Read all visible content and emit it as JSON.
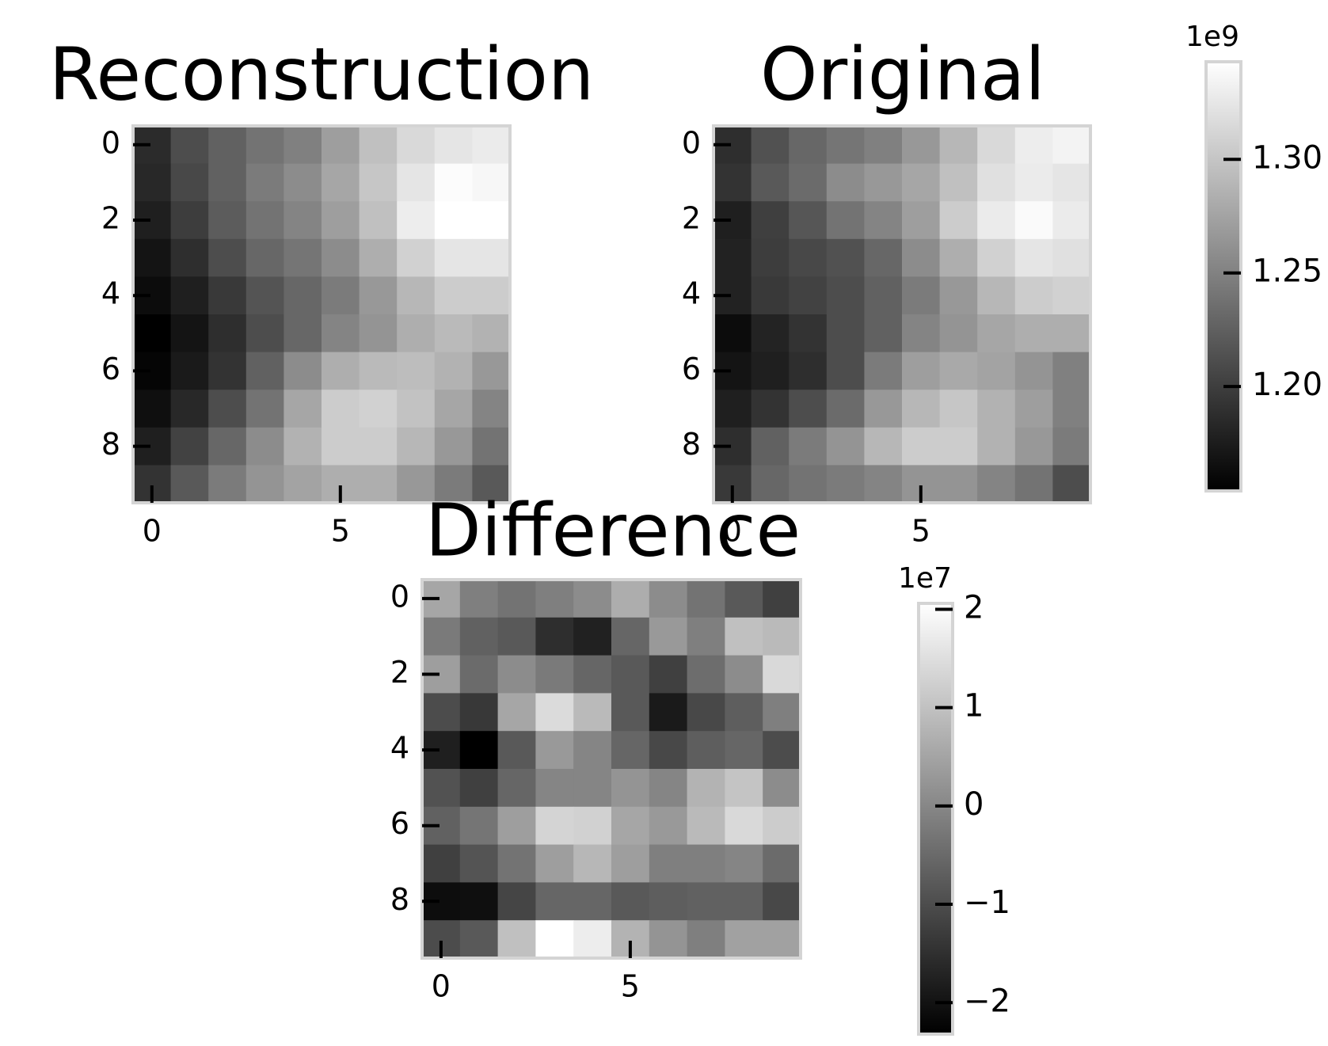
{
  "chart_data": [
    {
      "type": "heatmap",
      "title": "Reconstruction",
      "values": [
        [
          1.186,
          1.211,
          1.226,
          1.239,
          1.249,
          1.271,
          1.296,
          1.315,
          1.324,
          1.328
        ],
        [
          1.184,
          1.207,
          1.226,
          1.245,
          1.258,
          1.277,
          1.301,
          1.324,
          1.341,
          1.337
        ],
        [
          1.177,
          1.199,
          1.222,
          1.239,
          1.252,
          1.271,
          1.296,
          1.33,
          1.343,
          1.343
        ],
        [
          1.169,
          1.188,
          1.211,
          1.23,
          1.241,
          1.258,
          1.283,
          1.309,
          1.324,
          1.324
        ],
        [
          1.163,
          1.177,
          1.196,
          1.216,
          1.23,
          1.245,
          1.267,
          1.29,
          1.305,
          1.305
        ],
        [
          1.154,
          1.169,
          1.188,
          1.211,
          1.23,
          1.252,
          1.264,
          1.283,
          1.292,
          1.286
        ],
        [
          1.158,
          1.173,
          1.192,
          1.226,
          1.258,
          1.283,
          1.292,
          1.294,
          1.286,
          1.267
        ],
        [
          1.165,
          1.184,
          1.211,
          1.239,
          1.277,
          1.305,
          1.309,
          1.298,
          1.277,
          1.252
        ],
        [
          1.177,
          1.203,
          1.23,
          1.258,
          1.286,
          1.305,
          1.305,
          1.29,
          1.267,
          1.239
        ],
        [
          1.192,
          1.22,
          1.245,
          1.264,
          1.275,
          1.283,
          1.283,
          1.267,
          1.245,
          1.22
        ]
      ],
      "xticks": [
        0,
        5
      ],
      "yticks": [
        0,
        2,
        4,
        6,
        8
      ],
      "cmap": "gray"
    },
    {
      "type": "heatmap",
      "title": "Original",
      "values": [
        [
          1.188,
          1.214,
          1.23,
          1.241,
          1.249,
          1.267,
          1.29,
          1.315,
          1.33,
          1.334
        ],
        [
          1.192,
          1.22,
          1.233,
          1.258,
          1.267,
          1.277,
          1.296,
          1.32,
          1.328,
          1.324
        ],
        [
          1.177,
          1.201,
          1.218,
          1.239,
          1.252,
          1.271,
          1.305,
          1.328,
          1.339,
          1.328
        ],
        [
          1.179,
          1.199,
          1.207,
          1.214,
          1.23,
          1.258,
          1.283,
          1.309,
          1.324,
          1.32
        ],
        [
          1.179,
          1.196,
          1.203,
          1.211,
          1.226,
          1.245,
          1.267,
          1.29,
          1.305,
          1.309
        ],
        [
          1.163,
          1.18,
          1.192,
          1.211,
          1.226,
          1.252,
          1.264,
          1.277,
          1.283,
          1.283
        ],
        [
          1.169,
          1.177,
          1.188,
          1.211,
          1.245,
          1.271,
          1.279,
          1.275,
          1.264,
          1.249
        ],
        [
          1.177,
          1.192,
          1.211,
          1.233,
          1.267,
          1.29,
          1.301,
          1.286,
          1.271,
          1.249
        ],
        [
          1.188,
          1.226,
          1.245,
          1.264,
          1.29,
          1.305,
          1.305,
          1.286,
          1.267,
          1.245
        ],
        [
          1.196,
          1.23,
          1.239,
          1.245,
          1.252,
          1.264,
          1.264,
          1.252,
          1.239,
          1.211
        ]
      ],
      "xticks": [
        0,
        5
      ],
      "yticks": [
        0,
        2,
        4,
        6,
        8
      ],
      "cmap": "gray",
      "colorbar": {
        "offset": "1e9",
        "lim": [
          1.154,
          1.343
        ],
        "ticks": [
          {
            "value": 1.2,
            "label": "1.20"
          },
          {
            "value": 1.25,
            "label": "1.25"
          },
          {
            "value": 1.3,
            "label": "1.30"
          }
        ]
      }
    },
    {
      "type": "heatmap",
      "title": "Difference",
      "values": [
        [
          0.53,
          -0.13,
          -0.35,
          -0.13,
          0.09,
          0.66,
          0.09,
          -0.35,
          -0.79,
          -1.22
        ],
        [
          -0.22,
          -0.66,
          -0.79,
          -1.53,
          -1.75,
          -0.57,
          0.31,
          -0.13,
          0.97,
          0.88
        ],
        [
          0.4,
          -0.48,
          0.09,
          -0.22,
          -0.57,
          -0.79,
          -1.22,
          -0.44,
          0.09,
          1.4
        ],
        [
          -1.01,
          -1.36,
          0.53,
          1.45,
          0.88,
          -0.79,
          -1.88,
          -1.09,
          -0.7,
          -0.13
        ],
        [
          -1.79,
          -2.32,
          -0.79,
          0.31,
          -0.04,
          -0.57,
          -1.09,
          -0.7,
          -0.57,
          -1.01
        ],
        [
          -0.92,
          -1.22,
          -0.57,
          -0.04,
          -0.04,
          0.22,
          -0.04,
          0.75,
          1.05,
          0.09
        ],
        [
          -0.66,
          -0.31,
          0.4,
          1.32,
          1.27,
          0.53,
          0.31,
          0.88,
          1.4,
          1.18
        ],
        [
          -1.22,
          -0.88,
          -0.35,
          0.4,
          0.83,
          0.4,
          -0.13,
          -0.13,
          -0.04,
          -0.48
        ],
        [
          -2.1,
          -2.06,
          -1.14,
          -0.57,
          -0.57,
          -0.79,
          -0.7,
          -0.66,
          -0.66,
          -1.09
        ],
        [
          -1.01,
          -0.79,
          0.97,
          2.06,
          1.75,
          0.75,
          0.22,
          -0.13,
          0.44,
          0.44
        ]
      ],
      "xticks": [
        0,
        5
      ],
      "yticks": [
        0,
        2,
        4,
        6,
        8
      ],
      "cmap": "gray",
      "colorbar": {
        "offset": "1e7",
        "lim": [
          -2.32,
          2.06
        ],
        "ticks": [
          {
            "value": -2,
            "label": "−2"
          },
          {
            "value": -1,
            "label": "−1"
          },
          0,
          1,
          2
        ]
      }
    }
  ]
}
